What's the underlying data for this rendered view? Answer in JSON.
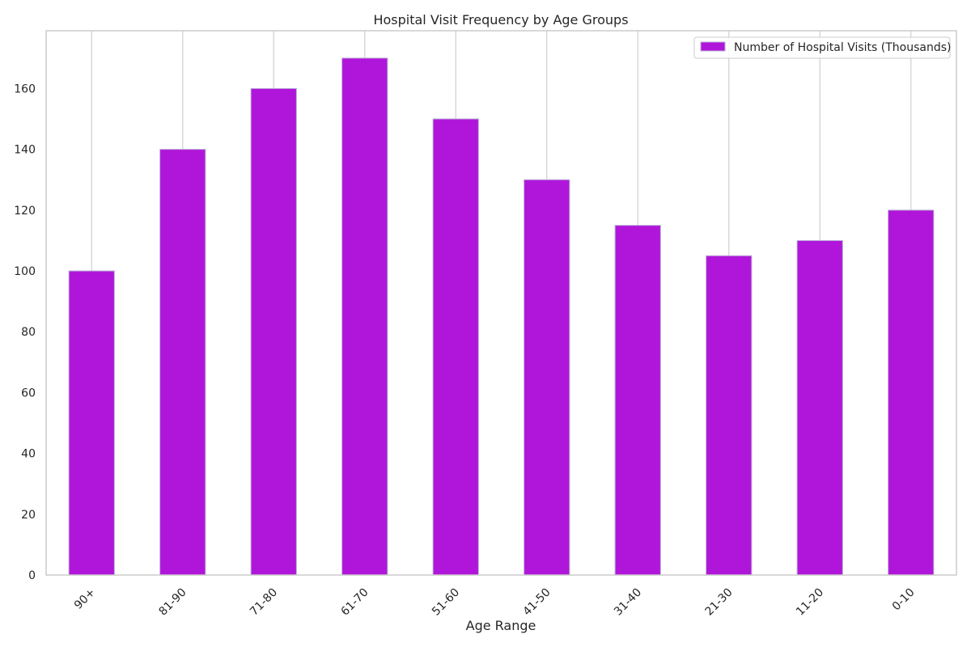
{
  "chart_data": {
    "type": "bar",
    "title": "Hospital Visit Frequency by Age Groups",
    "xlabel": "Age Range",
    "ylabel": "",
    "categories": [
      "90+",
      "81-90",
      "71-80",
      "61-70",
      "51-60",
      "41-50",
      "31-40",
      "21-30",
      "11-20",
      "0-10"
    ],
    "series": [
      {
        "name": "Number of Hospital Visits (Thousands)",
        "values": [
          100,
          140,
          160,
          170,
          150,
          130,
          115,
          105,
          110,
          120
        ],
        "color": "#b016d9"
      }
    ],
    "ylim": [
      0,
      179
    ],
    "yticks": [
      0,
      20,
      40,
      60,
      80,
      100,
      120,
      140,
      160
    ],
    "grid": "vertical",
    "legend_position": "top-right"
  }
}
